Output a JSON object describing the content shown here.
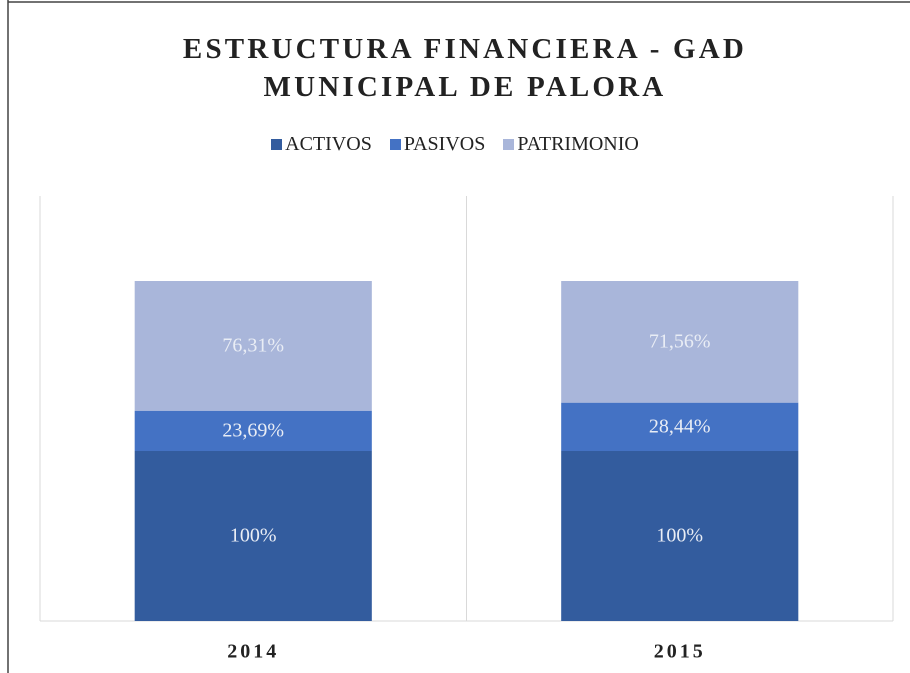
{
  "chart_data": {
    "type": "stacked_bar",
    "title": "ESTRUCTURA FINANCIERA - GAD MUNICIPAL DE PALORA",
    "categories": [
      "2014",
      "2015"
    ],
    "series": [
      {
        "name": "ACTIVOS",
        "color": "#335c9e",
        "values": [
          100,
          100
        ],
        "value_labels": [
          "100%",
          "100%"
        ]
      },
      {
        "name": "PASIVOS",
        "color": "#4472c4",
        "values": [
          23.69,
          28.44
        ],
        "value_labels": [
          "23,69%",
          "28,44%"
        ]
      },
      {
        "name": "PATRIMONIO",
        "color": "#a9b6da",
        "values": [
          76.31,
          71.56
        ],
        "value_labels": [
          "76,31%",
          "71,56%"
        ]
      }
    ],
    "ylim": [
      0,
      250
    ],
    "legend": "top"
  }
}
